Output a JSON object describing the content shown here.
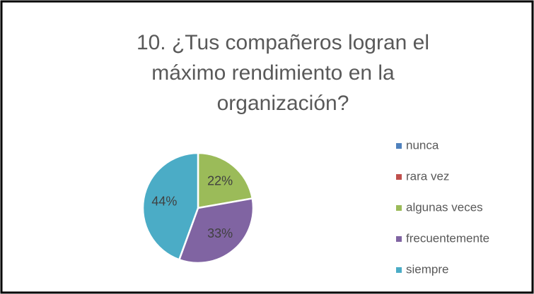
{
  "chart_data": {
    "type": "pie",
    "title": [
      "10. ¿Tus compañeros logran el",
      "máximo rendimiento en la",
      "organización?"
    ],
    "categories": [
      "nunca",
      "rara vez",
      "algunas veces",
      "frecuentemente",
      "siempre"
    ],
    "values": [
      0,
      0,
      22,
      33,
      44
    ],
    "value_labels": [
      null,
      null,
      "22%",
      "33%",
      "44%"
    ],
    "colors": [
      "#4f81bd",
      "#c0504d",
      "#9bbb59",
      "#8064a2",
      "#4bacc6"
    ],
    "legend": "right"
  }
}
